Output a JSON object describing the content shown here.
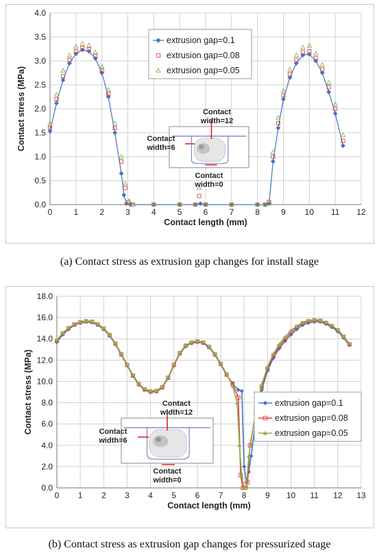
{
  "captions": {
    "a": "(a) Contact stress as extrusion gap changes for install stage",
    "b": "(b) Contact stress as extrusion gap changes for pressurized stage"
  },
  "inset_labels": {
    "top_line1": "Contact",
    "top_line2": "width=12",
    "left_line1": "Contact",
    "left_line2": "width=6",
    "bottom_line1": "Contact",
    "bottom_line2": "width=0"
  },
  "colors": {
    "series1": "#4472c4",
    "series2": "#e04040",
    "series3": "#8cb04a",
    "grid": "#d0d0d0"
  },
  "chart_data": [
    {
      "type": "scatter",
      "title": "",
      "xlabel": "Contact length (mm)",
      "ylabel": "Contact stress (MPa)",
      "xlim": [
        0,
        12
      ],
      "ylim": [
        0,
        4.0
      ],
      "xticks": [
        "0",
        "1",
        "2",
        "3",
        "4",
        "5",
        "6",
        "7",
        "8",
        "9",
        "10",
        "11",
        "12"
      ],
      "yticks": [
        "0.0",
        "0.5",
        "1.0",
        "1.5",
        "2.0",
        "2.5",
        "3.0",
        "3.5",
        "4.0"
      ],
      "grid": true,
      "legend_position": "top-center",
      "series": [
        {
          "name": "extrusion gap=0.1",
          "marker": "diamond",
          "x": [
            0,
            0.25,
            0.5,
            0.75,
            1.0,
            1.25,
            1.5,
            1.75,
            2.0,
            2.25,
            2.5,
            2.75,
            2.85,
            2.95,
            3.1,
            4,
            5,
            5.6,
            5.8,
            6,
            7,
            8,
            8.3,
            8.45,
            8.6,
            8.8,
            9.0,
            9.25,
            9.5,
            9.75,
            10.0,
            10.25,
            10.5,
            10.75,
            11.0,
            11.3
          ],
          "y": [
            1.53,
            2.12,
            2.6,
            2.95,
            3.15,
            3.23,
            3.2,
            3.05,
            2.75,
            2.25,
            1.5,
            0.65,
            0.2,
            0.02,
            0,
            0,
            0,
            0,
            0.02,
            0,
            0,
            0,
            0,
            0.02,
            0.9,
            1.6,
            2.2,
            2.65,
            2.95,
            3.12,
            3.14,
            3.0,
            2.75,
            2.35,
            1.9,
            1.23
          ]
        },
        {
          "name": "extrusion gap=0.08",
          "marker": "square",
          "x": [
            0,
            0.25,
            0.5,
            0.75,
            1.0,
            1.25,
            1.5,
            1.75,
            2.0,
            2.25,
            2.5,
            2.75,
            2.9,
            3.0,
            3.2,
            4,
            5,
            5.6,
            5.75,
            6,
            7,
            8,
            8.3,
            8.45,
            8.6,
            8.8,
            9.0,
            9.25,
            9.5,
            9.75,
            10.0,
            10.25,
            10.5,
            10.75,
            11.0,
            11.3
          ],
          "y": [
            1.6,
            2.2,
            2.68,
            3.02,
            3.2,
            3.27,
            3.24,
            3.1,
            2.8,
            2.32,
            1.6,
            0.9,
            0.35,
            0.05,
            0,
            0,
            0,
            0,
            0.18,
            0,
            0,
            0,
            0,
            0.05,
            1.0,
            1.7,
            2.28,
            2.72,
            3.02,
            3.18,
            3.2,
            3.06,
            2.82,
            2.45,
            2.0,
            1.33
          ]
        },
        {
          "name": "extrusion gap=0.05",
          "marker": "triangle",
          "x": [
            0,
            0.25,
            0.5,
            0.75,
            1.0,
            1.25,
            1.5,
            1.75,
            2.0,
            2.25,
            2.5,
            2.75,
            2.9,
            3.05,
            3.2,
            4,
            5,
            5.6,
            5.75,
            6,
            7,
            8,
            8.3,
            8.45,
            8.6,
            8.8,
            9.0,
            9.25,
            9.5,
            9.75,
            10.0,
            10.25,
            10.5,
            10.75,
            11.0,
            11.3
          ],
          "y": [
            1.7,
            2.3,
            2.8,
            3.12,
            3.3,
            3.36,
            3.33,
            3.18,
            2.88,
            2.4,
            1.7,
            1.0,
            0.45,
            0.08,
            0,
            0,
            0,
            0,
            0.35,
            0,
            0,
            0,
            0,
            0.08,
            1.1,
            1.82,
            2.38,
            2.82,
            3.12,
            3.28,
            3.32,
            3.16,
            2.92,
            2.55,
            2.1,
            1.45
          ]
        }
      ]
    },
    {
      "type": "line",
      "title": "",
      "xlabel": "Contact length (mm)",
      "ylabel": "Contact stress (MPa)",
      "xlim": [
        0,
        13
      ],
      "ylim": [
        0,
        18.0
      ],
      "xticks": [
        "0",
        "1",
        "2",
        "3",
        "4",
        "5",
        "6",
        "7",
        "8",
        "9",
        "10",
        "11",
        "12",
        "13"
      ],
      "yticks": [
        "0.0",
        "2.0",
        "4.0",
        "6.0",
        "8.0",
        "10.0",
        "12.0",
        "14.0",
        "16.0",
        "18.0"
      ],
      "grid": true,
      "legend_position": "center-right",
      "series": [
        {
          "name": "extrusion gap=0.1",
          "marker": "diamond",
          "x": [
            0,
            0.25,
            0.5,
            0.75,
            1.0,
            1.25,
            1.5,
            1.75,
            2.0,
            2.25,
            2.5,
            2.75,
            3.0,
            3.25,
            3.5,
            3.75,
            4.0,
            4.25,
            4.5,
            4.75,
            5.0,
            5.25,
            5.5,
            5.75,
            6.0,
            6.25,
            6.5,
            6.75,
            7.0,
            7.25,
            7.5,
            7.75,
            7.9,
            8.0,
            8.1,
            8.2,
            8.3,
            8.5,
            8.75,
            9.0,
            9.25,
            9.5,
            9.75,
            10.0,
            10.25,
            10.5,
            10.75,
            11.0,
            11.25,
            11.5,
            11.75,
            12.0,
            12.25,
            12.5
          ],
          "y": [
            13.7,
            14.4,
            14.9,
            15.3,
            15.5,
            15.6,
            15.55,
            15.3,
            14.9,
            14.3,
            13.5,
            12.5,
            11.5,
            10.5,
            9.7,
            9.2,
            9.0,
            9.05,
            9.4,
            10.3,
            11.5,
            12.6,
            13.3,
            13.6,
            13.7,
            13.6,
            13.2,
            12.5,
            11.6,
            10.6,
            9.8,
            9.2,
            9.1,
            2.0,
            0.5,
            1.5,
            3.0,
            6.5,
            9.2,
            11.0,
            12.2,
            13.1,
            13.8,
            14.4,
            14.9,
            15.3,
            15.5,
            15.6,
            15.6,
            15.4,
            15.1,
            14.7,
            14.1,
            13.4
          ]
        },
        {
          "name": "extrusion gap=0.08",
          "marker": "square",
          "x": [
            0,
            0.25,
            0.5,
            0.75,
            1.0,
            1.25,
            1.5,
            1.75,
            2.0,
            2.25,
            2.5,
            2.75,
            3.0,
            3.25,
            3.5,
            3.75,
            4.0,
            4.25,
            4.5,
            4.75,
            5.0,
            5.25,
            5.5,
            5.75,
            6.0,
            6.25,
            6.5,
            6.75,
            7.0,
            7.25,
            7.5,
            7.75,
            7.85,
            7.95,
            8.05,
            8.15,
            8.25,
            8.5,
            8.75,
            9.0,
            9.25,
            9.5,
            9.75,
            10.0,
            10.25,
            10.5,
            10.75,
            11.0,
            11.25,
            11.5,
            11.75,
            12.0,
            12.25,
            12.5
          ],
          "y": [
            13.8,
            14.5,
            15.0,
            15.35,
            15.55,
            15.65,
            15.6,
            15.35,
            14.95,
            14.35,
            13.55,
            12.55,
            11.55,
            10.55,
            9.75,
            9.25,
            9.05,
            9.1,
            9.45,
            10.35,
            11.55,
            12.65,
            13.35,
            13.65,
            13.75,
            13.65,
            13.25,
            12.55,
            11.65,
            10.65,
            9.8,
            8.5,
            1.2,
            0.0,
            0.0,
            0.5,
            4.0,
            7.0,
            9.5,
            11.2,
            12.4,
            13.3,
            14.0,
            14.6,
            15.1,
            15.45,
            15.65,
            15.75,
            15.7,
            15.5,
            15.2,
            14.8,
            14.2,
            13.5
          ]
        },
        {
          "name": "extrusion gap=0.05",
          "marker": "triangle",
          "x": [
            0,
            0.25,
            0.5,
            0.75,
            1.0,
            1.25,
            1.5,
            1.75,
            2.0,
            2.25,
            2.5,
            2.75,
            3.0,
            3.25,
            3.5,
            3.75,
            4.0,
            4.25,
            4.5,
            4.75,
            5.0,
            5.25,
            5.5,
            5.75,
            6.0,
            6.25,
            6.5,
            6.75,
            7.0,
            7.25,
            7.5,
            7.7,
            7.8,
            7.9,
            8.0,
            8.1,
            8.2,
            8.5,
            8.75,
            9.0,
            9.25,
            9.5,
            9.75,
            10.0,
            10.25,
            10.5,
            10.75,
            11.0,
            11.25,
            11.5,
            11.75,
            12.0,
            12.25,
            12.5
          ],
          "y": [
            13.9,
            14.55,
            15.05,
            15.4,
            15.6,
            15.7,
            15.65,
            15.4,
            15.0,
            14.4,
            13.6,
            12.6,
            11.6,
            10.6,
            9.8,
            9.3,
            9.1,
            9.15,
            9.5,
            10.4,
            11.6,
            12.7,
            13.4,
            13.7,
            13.8,
            13.7,
            13.3,
            12.6,
            11.7,
            10.7,
            9.6,
            8.0,
            4.0,
            1.0,
            0.0,
            0.2,
            3.0,
            7.2,
            9.7,
            11.4,
            12.6,
            13.5,
            14.2,
            14.8,
            15.2,
            15.55,
            15.75,
            15.8,
            15.75,
            15.55,
            15.25,
            14.85,
            14.25,
            13.55
          ]
        }
      ]
    }
  ]
}
